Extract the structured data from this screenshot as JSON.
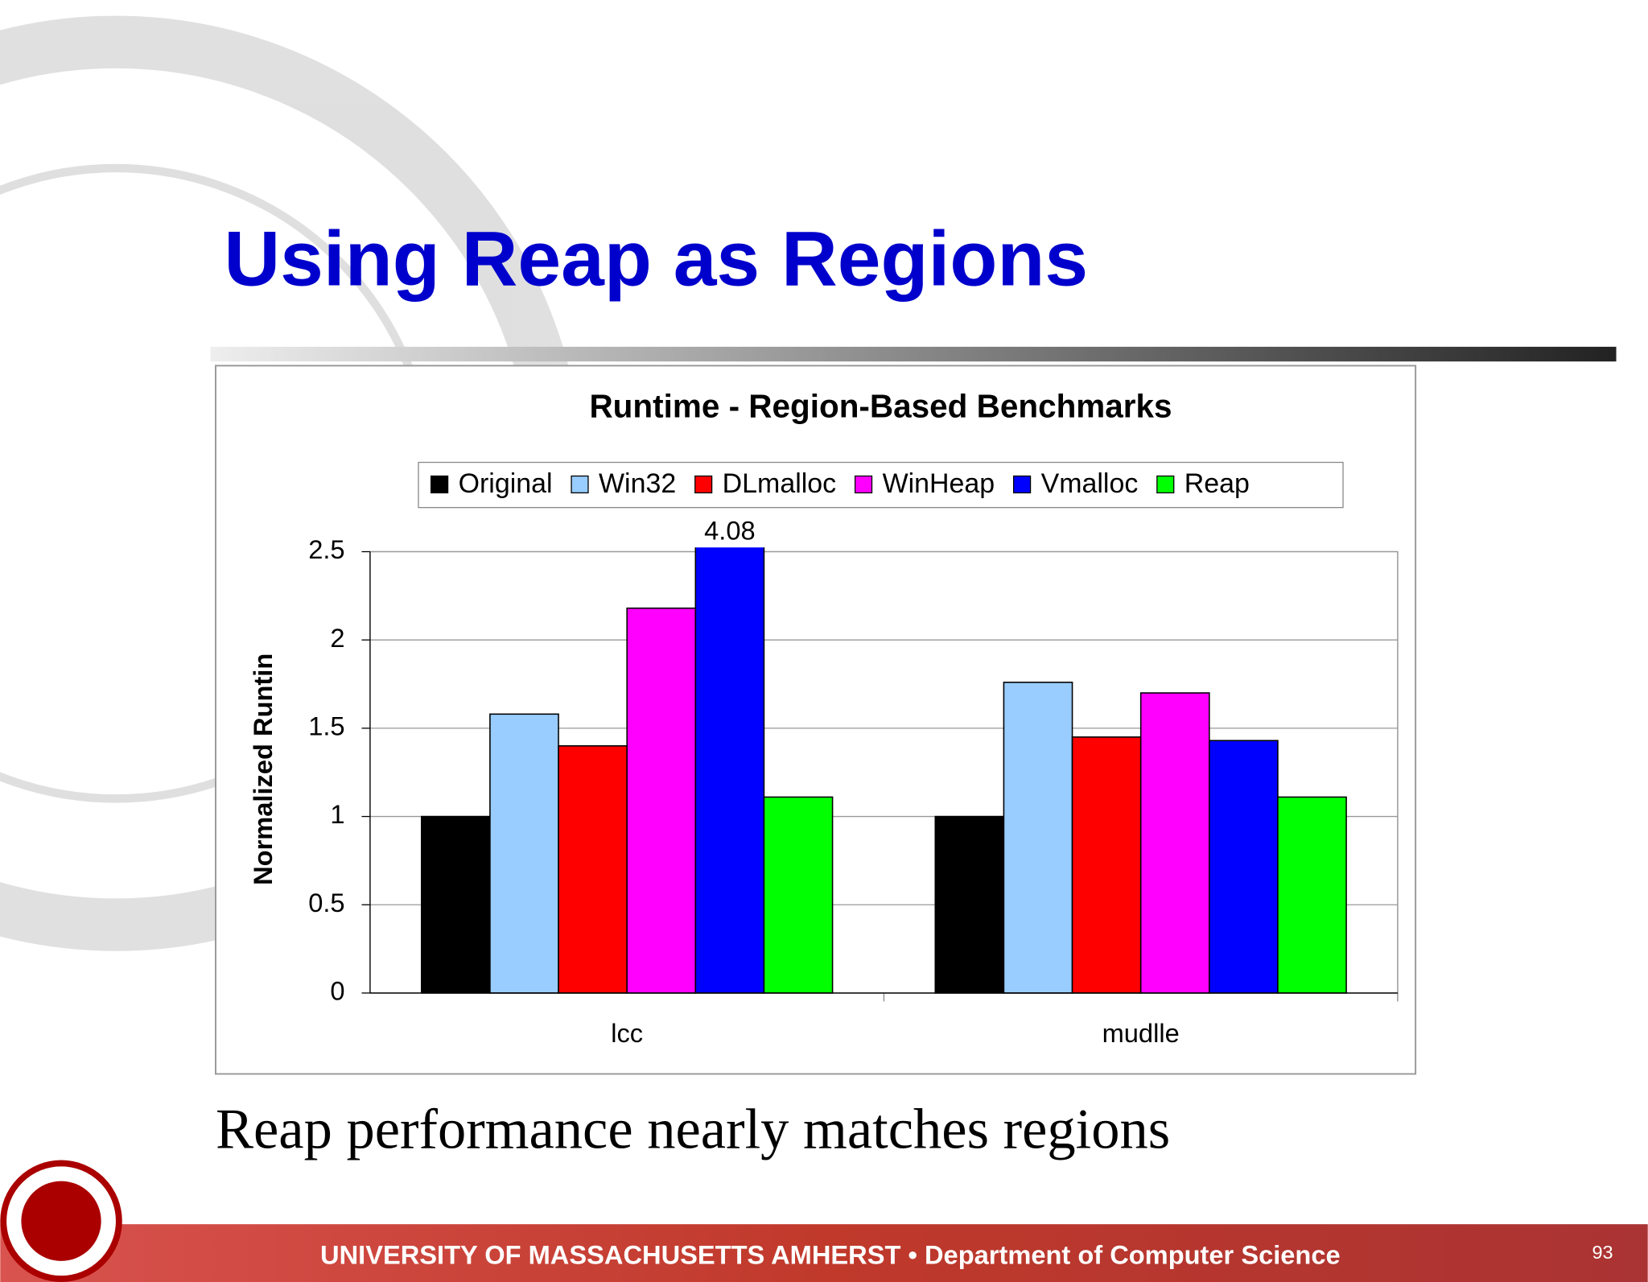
{
  "slide": {
    "title": "Using Reap as Regions",
    "caption": "Reap performance nearly matches regions",
    "footer": "UNIVERSITY OF MASSACHUSETTS AMHERST • Department of Computer Science",
    "page_number": "93"
  },
  "chart_data": {
    "type": "bar",
    "title": "Runtime - Region-Based Benchmarks",
    "y_label": "Normalized Runtin",
    "categories": [
      "lcc",
      "mudlle"
    ],
    "series": [
      {
        "name": "Original",
        "color": "#000000",
        "values": [
          1.0,
          1.0
        ]
      },
      {
        "name": "Win32",
        "color": "#99ccff",
        "values": [
          1.58,
          1.76
        ]
      },
      {
        "name": "DLmalloc",
        "color": "#ff0000",
        "values": [
          1.4,
          1.45
        ]
      },
      {
        "name": "WinHeap",
        "color": "#ff00ff",
        "values": [
          2.18,
          1.7
        ]
      },
      {
        "name": "Vmalloc",
        "color": "#0000ff",
        "values": [
          4.08,
          1.43
        ],
        "value_labels": [
          "4.08",
          null
        ]
      },
      {
        "name": "Reap",
        "color": "#00ff00",
        "values": [
          1.11,
          1.11
        ]
      }
    ],
    "ylim": [
      0,
      2.5
    ],
    "yticks": [
      0,
      0.5,
      1,
      1.5,
      2,
      2.5
    ],
    "grid": true,
    "legend": "top"
  }
}
